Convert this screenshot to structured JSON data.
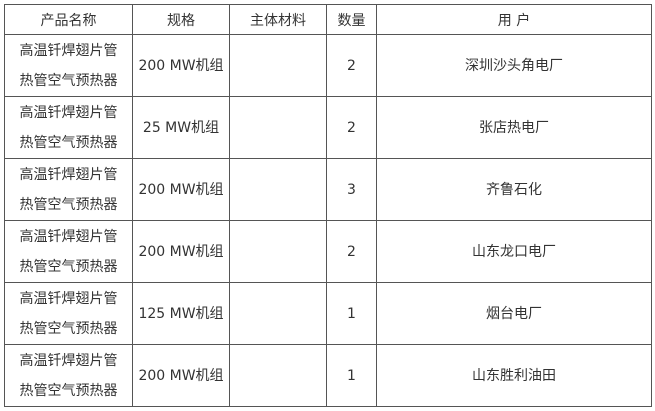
{
  "headers": [
    "产品名称",
    "规格",
    "主体材料",
    "数量",
    "用 户"
  ],
  "rows": [
    {
      "name1": "高温钎焊翅片管",
      "name2": "热管空气预热器",
      "spec": "200 MW机组",
      "material": "",
      "qty": "2",
      "user": "深圳沙头角电厂"
    },
    {
      "name1": "高温钎焊翅片管",
      "name2": "热管空气预热器",
      "spec": "25 MW机组",
      "material": "",
      "qty": "2",
      "user": "张店热电厂"
    },
    {
      "name1": "高温钎焊翅片管",
      "name2": "热管空气预热器",
      "spec": "200 MW机组",
      "material": "",
      "qty": "3",
      "user": "齐鲁石化"
    },
    {
      "name1": "高温钎焊翅片管",
      "name2": "热管空气预热器",
      "spec": "200 MW机组",
      "material": "",
      "qty": "2",
      "user": "山东龙口电厂"
    },
    {
      "name1": "高温钎焊翅片管",
      "name2": "热管空气预热器",
      "spec": "125 MW机组",
      "material": "",
      "qty": "1",
      "user": "烟台电厂"
    },
    {
      "name1": "高温钎焊翅片管",
      "name2": "热管空气预热器",
      "spec": "200 MW机组",
      "material": "",
      "qty": "1",
      "user": "山东胜利油田"
    }
  ]
}
